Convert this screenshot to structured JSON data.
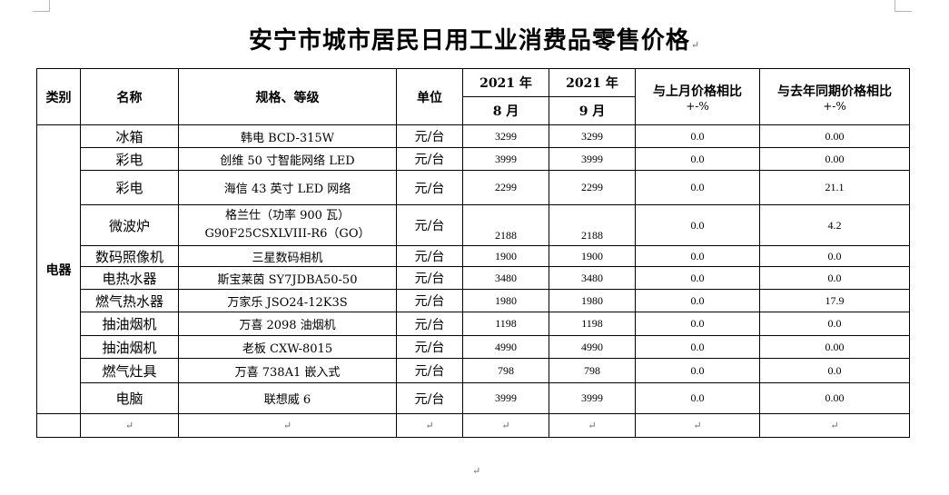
{
  "title": "安宁市城市居民日用工业消费品零售价格",
  "enter_mark": "↵",
  "headers": {
    "category": "类别",
    "name": "名称",
    "spec": "规格、等级",
    "unit": "单位",
    "year1": "2021 年",
    "year2": "2021 年",
    "month1": "8 月",
    "month2": "9 月",
    "mom_line1": "与上月价格相比",
    "mom_line2": "+-%",
    "yoy_line1": "与去年同期价格相比",
    "yoy_line2": "+-%"
  },
  "category": "电器",
  "rows": [
    {
      "name": "冰箱",
      "spec": "韩电 BCD-315W",
      "spec2": "",
      "unit": "元/台",
      "aug": "3299",
      "sep": "3299",
      "mom": "0.0",
      "yoy": "0.00"
    },
    {
      "name": "彩电",
      "spec": "创维 50 寸智能网络 LED",
      "spec2": "",
      "unit": "元/台",
      "aug": "3999",
      "sep": "3999",
      "mom": "0.0",
      "yoy": "0.00"
    },
    {
      "name": "彩电",
      "spec": "海信 43 英寸 LED 网络",
      "spec2": "",
      "unit": "元/台",
      "aug": "2299",
      "sep": "2299",
      "mom": "0.0",
      "yoy": "21.1"
    },
    {
      "name": "微波炉",
      "spec": "格兰仕（功率 900 瓦）",
      "spec2": "G90F25CSXLVIII-R6（GO）",
      "unit": "元/台",
      "aug": "2188",
      "sep": "2188",
      "mom": "0.0",
      "yoy": "4.2"
    },
    {
      "name": "数码照像机",
      "spec": "三星数码相机",
      "spec2": "",
      "unit": "元/台",
      "aug": "1900",
      "sep": "1900",
      "mom": "0.0",
      "yoy": "0.0"
    },
    {
      "name": "电热水器",
      "spec": "斯宝莱茵 SY7JDBA50-50",
      "spec2": "",
      "unit": "元/台",
      "aug": "3480",
      "sep": "3480",
      "mom": "0.0",
      "yoy": "0.0"
    },
    {
      "name": "燃气热水器",
      "spec": "万家乐 JSO24-12K3S",
      "spec2": "",
      "unit": "元/台",
      "aug": "1980",
      "sep": "1980",
      "mom": "0.0",
      "yoy": "17.9"
    },
    {
      "name": "抽油烟机",
      "spec": "万喜 2098 油烟机",
      "spec2": "",
      "unit": "元/台",
      "aug": "1198",
      "sep": "1198",
      "mom": "0.0",
      "yoy": "0.0"
    },
    {
      "name": "抽油烟机",
      "spec": "老板 CXW-8015",
      "spec2": "",
      "unit": "元/台",
      "aug": "4990",
      "sep": "4990",
      "mom": "0.0",
      "yoy": "0.00"
    },
    {
      "name": "燃气灶具",
      "spec": "万喜 738A1 嵌入式",
      "spec2": "",
      "unit": "元/台",
      "aug": "798",
      "sep": "798",
      "mom": "0.0",
      "yoy": "0.0"
    },
    {
      "name": "电脑",
      "spec": "联想威 6",
      "spec2": "",
      "unit": "元/台",
      "aug": "3999",
      "sep": "3999",
      "mom": "0.0",
      "yoy": "0.00"
    }
  ]
}
